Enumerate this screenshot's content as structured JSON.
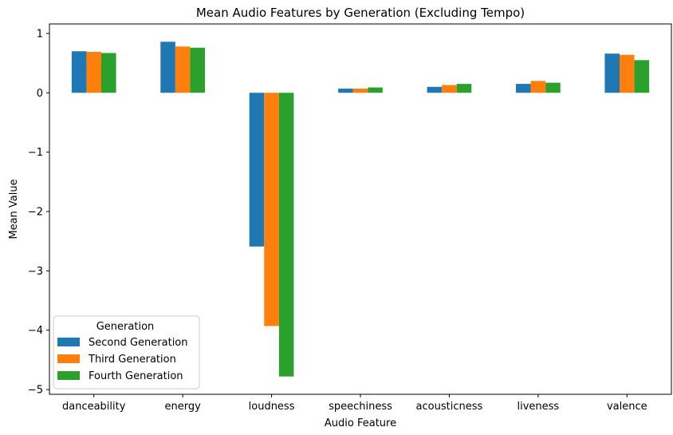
{
  "chart_data": {
    "type": "bar",
    "title": "Mean Audio Features by Generation (Excluding Tempo)",
    "xlabel": "Audio Feature",
    "ylabel": "Mean Value",
    "categories": [
      "danceability",
      "energy",
      "loudness",
      "speechiness",
      "acousticness",
      "liveness",
      "valence"
    ],
    "series": [
      {
        "name": "Second Generation",
        "color": "#1f77b4",
        "values": [
          0.7,
          0.86,
          -2.59,
          0.07,
          0.1,
          0.15,
          0.66
        ]
      },
      {
        "name": "Third Generation",
        "color": "#ff7f0e",
        "values": [
          0.69,
          0.78,
          -3.93,
          0.07,
          0.13,
          0.2,
          0.64
        ]
      },
      {
        "name": "Fourth Generation",
        "color": "#2ca02c",
        "values": [
          0.67,
          0.76,
          -4.78,
          0.09,
          0.15,
          0.17,
          0.55
        ]
      }
    ],
    "ylim": [
      -5.08,
      1.16
    ],
    "yticks": [
      1,
      0,
      -1,
      -2,
      -3,
      -4,
      -5
    ],
    "ytick_labels": [
      "1",
      "0",
      "−1",
      "−2",
      "−3",
      "−4",
      "−5"
    ],
    "legend": {
      "title": "Generation",
      "position": "lower-left"
    },
    "grid": false
  }
}
